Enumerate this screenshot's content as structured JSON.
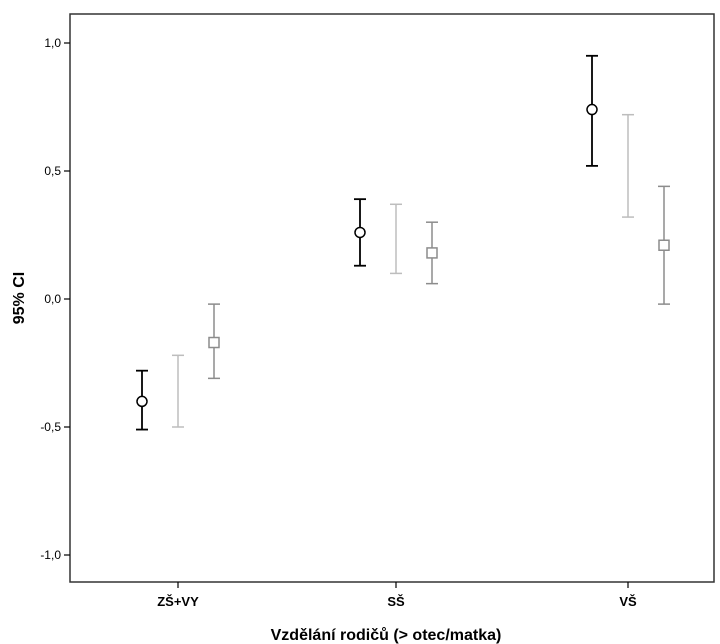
{
  "chart_data": {
    "type": "errorbar",
    "title": "",
    "xlabel": "Vzdělání rodičů (> otec/matka)",
    "ylabel": "95% CI",
    "ylim": [
      -1.1,
      1.1
    ],
    "yticks": [
      -1.0,
      -0.5,
      0.0,
      0.5,
      1.0
    ],
    "ytick_labels": [
      "-1,0",
      "-0,5",
      "0,0",
      "0,5",
      "1,0"
    ],
    "categories": [
      "ZŠ+VY",
      "SŠ",
      "VŠ"
    ],
    "grid": false,
    "series": [
      {
        "marker": "circle",
        "color": "#000000",
        "mean": [
          -0.4,
          0.26,
          0.74
        ],
        "lower": [
          -0.51,
          0.13,
          0.52
        ],
        "upper": [
          -0.28,
          0.39,
          0.95
        ]
      },
      {
        "marker": "none",
        "color": "#bdbdbd",
        "mean": [
          -0.36,
          0.23,
          0.52
        ],
        "lower": [
          -0.5,
          0.1,
          0.32
        ],
        "upper": [
          -0.22,
          0.37,
          0.72
        ]
      },
      {
        "marker": "square",
        "color": "#8c8c8c",
        "mean": [
          -0.17,
          0.18,
          0.21
        ],
        "lower": [
          -0.31,
          0.06,
          -0.02
        ],
        "upper": [
          -0.02,
          0.3,
          0.44
        ]
      }
    ]
  }
}
